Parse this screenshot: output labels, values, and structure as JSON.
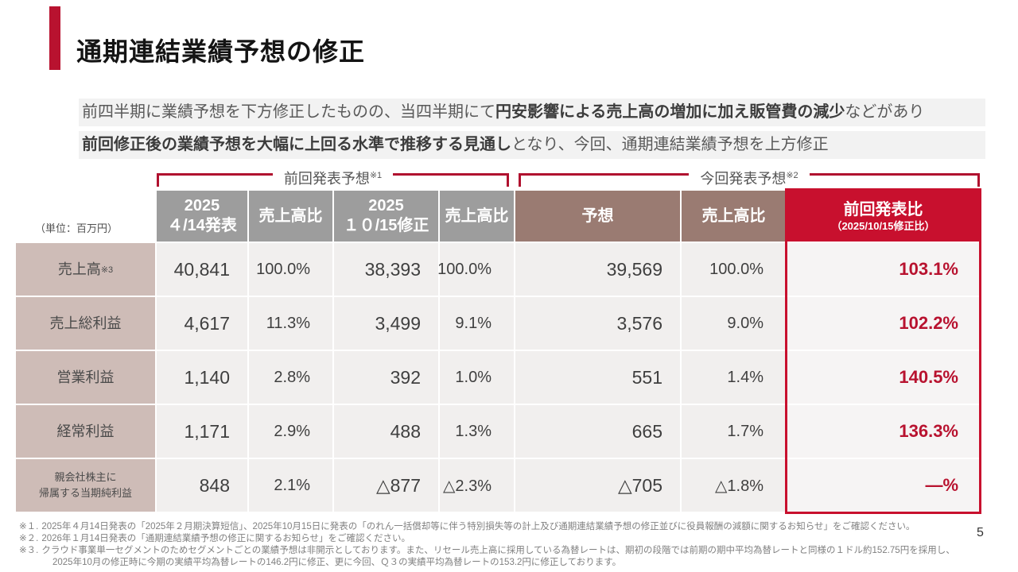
{
  "slide": {
    "title": "通期連結業績予想の修正",
    "page_number": "5"
  },
  "intro": {
    "line1_pre": "前四半期に業績予想を下方修正したものの、当四半期にて",
    "line1_bold": "円安影響による売上高の増加に加え販管費の減少",
    "line1_post": "などがあり",
    "line2_bold": "前回修正後の業績予想を大幅に上回る水準で推移する見通し",
    "line2_post": "となり、今回、通期連結業績予想を上方修正"
  },
  "brackets": {
    "previous": {
      "label": "前回発表予想",
      "sup": "※1"
    },
    "current": {
      "label": "今回発表予想",
      "sup": "※2"
    }
  },
  "table": {
    "unit_label": "（単位：百万円）",
    "columns": [
      {
        "line1": "2025",
        "line2": "４/14発表"
      },
      {
        "line1": "売上高比",
        "line2": ""
      },
      {
        "line1": "2025",
        "line2": "１０/15修正"
      },
      {
        "line1": "売上高比",
        "line2": ""
      },
      {
        "line1": "予想",
        "line2": ""
      },
      {
        "line1": "売上高比",
        "line2": ""
      },
      {
        "line1": "前回発表比",
        "line2": "（2025/10/15修正比）"
      }
    ],
    "rows": [
      {
        "label": "売上高",
        "sup": "※3",
        "values": [
          "40,841",
          "100.0%",
          "38,393",
          "100.0%",
          "39,569",
          "100.0%",
          "103.1%"
        ]
      },
      {
        "label": "売上総利益",
        "sup": "",
        "values": [
          "4,617",
          "11.3%",
          "3,499",
          "9.1%",
          "3,576",
          "9.0%",
          "102.2%"
        ]
      },
      {
        "label": "営業利益",
        "sup": "",
        "values": [
          "1,140",
          "2.8%",
          "392",
          "1.0%",
          "551",
          "1.4%",
          "140.5%"
        ]
      },
      {
        "label": "経常利益",
        "sup": "",
        "values": [
          "1,171",
          "2.9%",
          "488",
          "1.3%",
          "665",
          "1.7%",
          "136.3%"
        ]
      },
      {
        "label": "親会社株主に\n帰属する当期純利益",
        "sup": "",
        "values": [
          "848",
          "2.1%",
          "△877",
          "△2.3%",
          "△705",
          "△1.8%",
          "—%"
        ]
      }
    ]
  },
  "footnotes": [
    {
      "marker": "※１.",
      "text": "2025年４月14日発表の「2025年２月期決算短信」、2025年10月15日に発表の「のれん一括償却等に伴う特別損失等の計上及び通期連結業績予想の修正並びに役員報酬の減額に関するお知らせ」をご確認ください。"
    },
    {
      "marker": "※２.",
      "text": "2026年１月14日発表の「通期連結業績予想の修正に関するお知らせ」をご確認ください。"
    },
    {
      "marker": "※３.",
      "text": "クラウド事業単一セグメントのためセグメントごとの業績予想は非開示としております。また、リセール売上高に採用している為替レートは、期初の段階では前期の期中平均為替レートと同様の１ドル約152.75円を採用し、2025年10月の修正時に今期の実績平均為替レートの146.2円に修正、更に今回、Ｑ３の実績平均為替レートの153.2円に修正しております。"
    }
  ],
  "colors": {
    "accent_red": "#b8122f",
    "header_gray": "#9d9d9d",
    "header_brown": "#9a7b72",
    "header_red": "#c8102e",
    "row_label_bg": "#cebcb7",
    "cell_bg": "#f1efee"
  }
}
